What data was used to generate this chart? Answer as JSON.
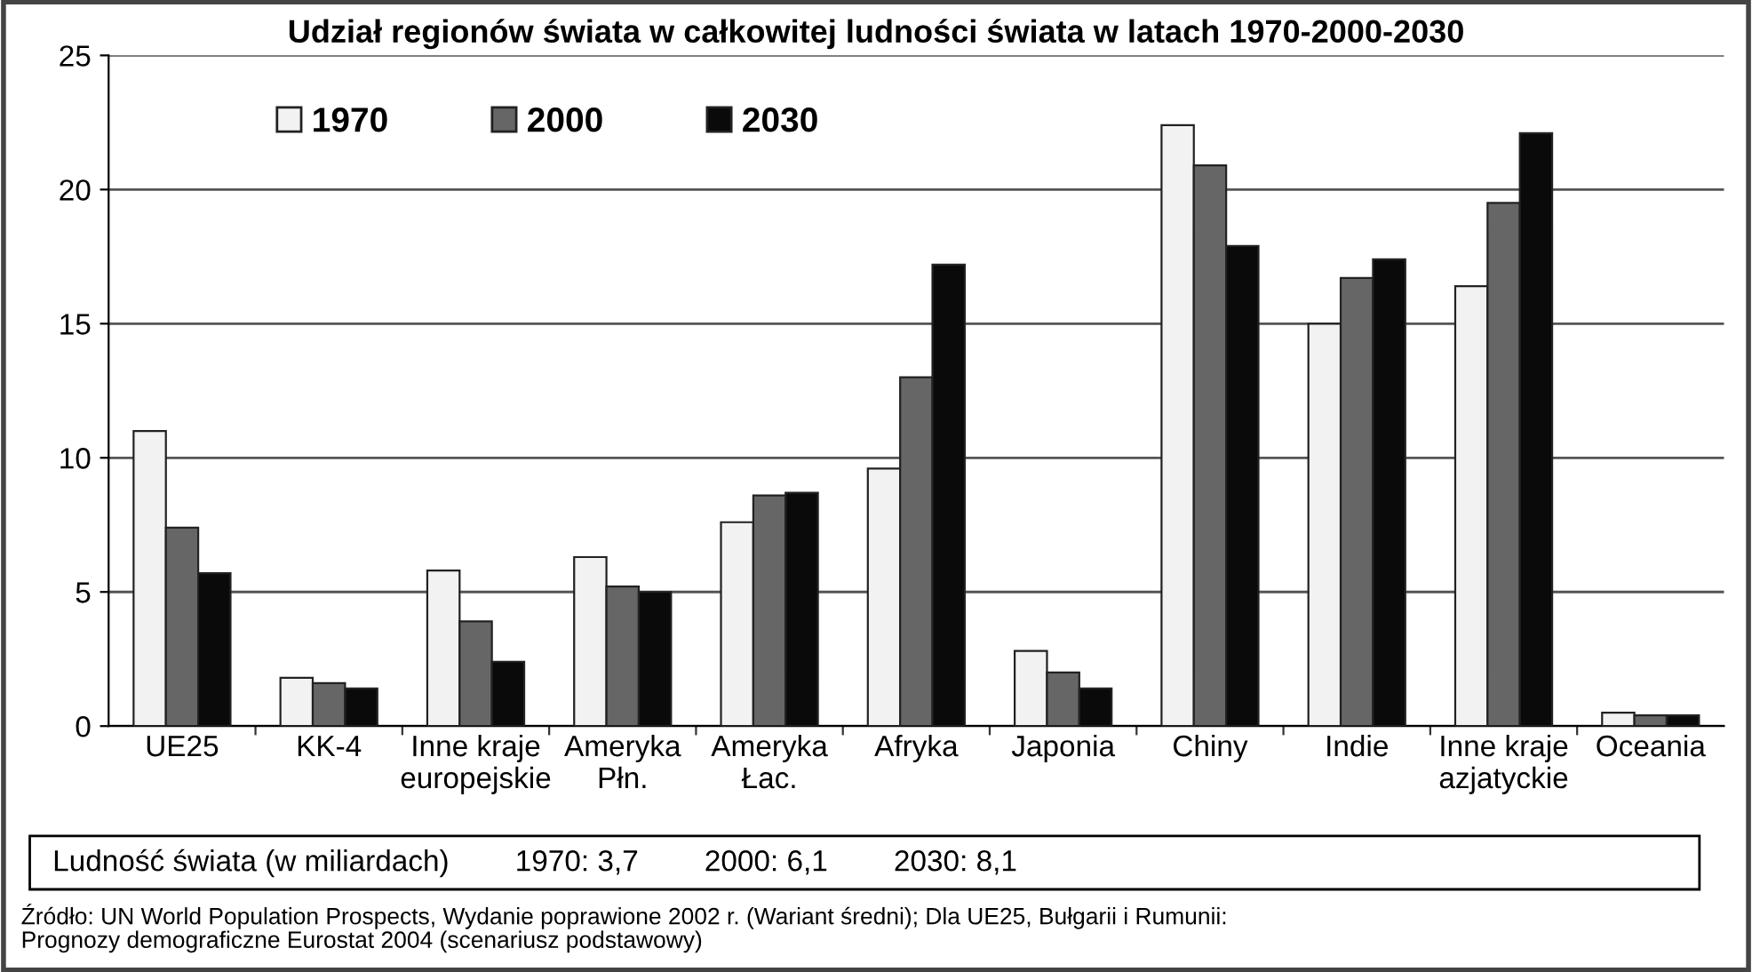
{
  "chart_data": {
    "type": "bar",
    "title": "Udział regionów świata w całkowitej ludności świata w latach 1970-2000-2030",
    "categories": [
      "UE25",
      "KK-4",
      "Inne kraje\neuropejskie",
      "Ameryka\nPłn.",
      "Ameryka\nŁac.",
      "Afryka",
      "Japonia",
      "Chiny",
      "Indie",
      "Inne kraje\nazjatyckie",
      "Oceania"
    ],
    "series": [
      {
        "name": "1970",
        "color": "#f2f2f2",
        "values": [
          11.0,
          1.8,
          5.8,
          6.3,
          7.6,
          9.6,
          2.8,
          22.4,
          15.0,
          16.4,
          0.5
        ]
      },
      {
        "name": "2000",
        "color": "#666666",
        "values": [
          7.4,
          1.6,
          3.9,
          5.2,
          8.6,
          13.0,
          2.0,
          20.9,
          16.7,
          19.5,
          0.4
        ]
      },
      {
        "name": "2030",
        "color": "#0a0a0a",
        "values": [
          5.7,
          1.4,
          2.4,
          5.0,
          8.7,
          17.2,
          1.4,
          17.9,
          17.4,
          22.1,
          0.4
        ]
      }
    ],
    "ylim": [
      0,
      25
    ],
    "yticks": [
      0,
      5,
      10,
      15,
      20,
      25
    ],
    "grid": "y",
    "legend": "top left",
    "annotations": [
      "Ludność świata (w miliardach)        1970: 3,7        2000: 6,1        2030: 8,1",
      "Źródło: UN World Population Prospects, Wydanie poprawione 2002 r. (Wariant średni); Dla UE25, Bułgarii i Rumunii:\nPrognozy demograficzne Eurostat 2004 (scenariusz podstawowy)"
    ]
  }
}
